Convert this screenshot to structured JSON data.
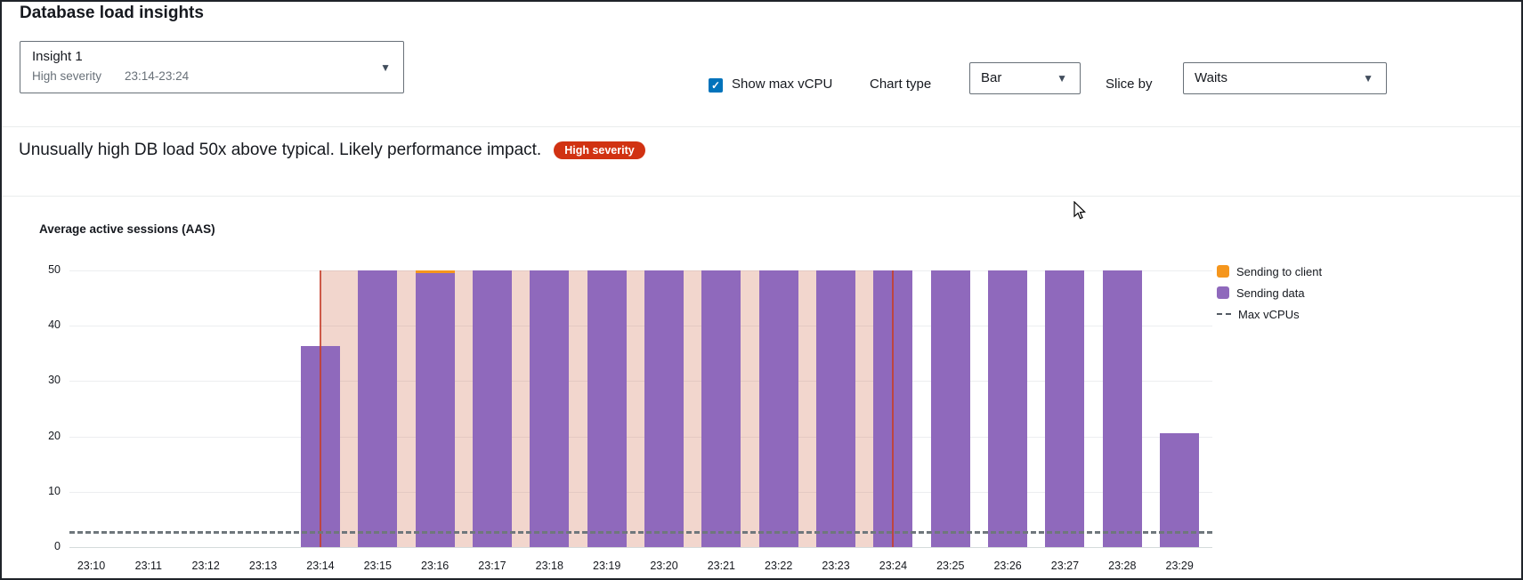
{
  "window": {
    "title": "Database load insights"
  },
  "header": {
    "insight_selector": {
      "name": "Insight 1",
      "severity": "High severity",
      "time_range": "23:14-23:24"
    },
    "show_max_vcpu": {
      "label": "Show max vCPU",
      "checked": true,
      "check_glyph": "✓",
      "checkbox_color": "#0073bb"
    },
    "chart_type": {
      "label": "Chart type",
      "value": "Bar"
    },
    "slice_by": {
      "label": "Slice by",
      "value": "Waits"
    },
    "caret_glyph": "▼"
  },
  "alert": {
    "message": "Unusually high DB load 50x above typical. Likely performance impact.",
    "badge": "High severity",
    "badge_color": "#d13212"
  },
  "chart_data": {
    "type": "bar",
    "stacked": true,
    "title": "Average active sessions (AAS)",
    "categories": [
      "23:10",
      "23:11",
      "23:12",
      "23:13",
      "23:14",
      "23:15",
      "23:16",
      "23:17",
      "23:18",
      "23:19",
      "23:20",
      "23:21",
      "23:22",
      "23:23",
      "23:24",
      "23:25",
      "23:26",
      "23:27",
      "23:28",
      "23:29"
    ],
    "series": [
      {
        "name": "Sending to client",
        "color": "#f5961d",
        "values": [
          0,
          0,
          0,
          0,
          0,
          0,
          0.5,
          0,
          0,
          0,
          0,
          0,
          0,
          0,
          0,
          0,
          0,
          0,
          0,
          0
        ]
      },
      {
        "name": "Sending data",
        "color": "#8f69bc",
        "values": [
          0,
          0,
          0,
          0,
          36.3,
          50,
          49.5,
          50,
          50,
          50,
          50,
          50,
          50,
          50,
          50,
          50,
          50,
          50,
          50,
          20.5
        ]
      }
    ],
    "max_vcpus_line": {
      "label": "Max vCPUs",
      "value": 2,
      "style": "dashed",
      "color": "#6f777c"
    },
    "highlight": {
      "start": "23:14",
      "end": "23:24",
      "fill": "rgba(205,95,60,0.26)",
      "edge_color": "#c5402c"
    },
    "yticks": [
      0,
      10,
      20,
      30,
      40,
      50
    ],
    "ylim": [
      0,
      50
    ],
    "xlabel": "",
    "ylabel": "",
    "grid": true,
    "legend_position": "right"
  }
}
